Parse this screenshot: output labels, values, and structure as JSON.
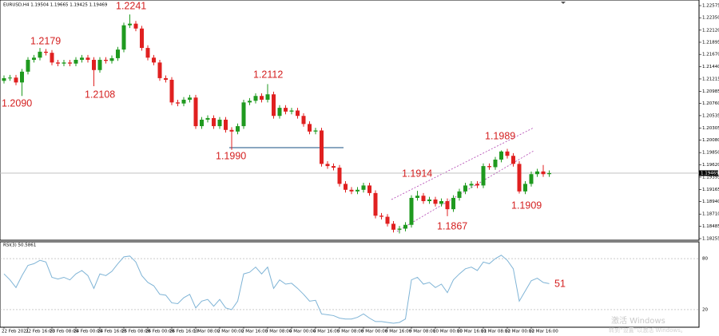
{
  "chart_data": {
    "type": "candlestick",
    "header": "EURUSD,H4  1.19504 1.19665 1.19425 1.19469",
    "open": [
      1.2118,
      1.2123,
      1.2124,
      1.2115,
      1.2135,
      1.2157,
      1.2161,
      1.2172,
      1.217,
      1.2152,
      1.215,
      1.2152,
      1.215,
      1.2157,
      1.2161,
      1.2157,
      1.2138,
      1.2157,
      1.2155,
      1.216,
      1.2176,
      1.2221,
      1.2224,
      1.2215,
      1.2179,
      1.2161,
      1.2152,
      1.2123,
      1.212,
      1.2078,
      1.2076,
      1.2083,
      1.2087,
      1.2034,
      1.2046,
      1.2049,
      1.2034,
      1.2046,
      1.2027,
      1.2024,
      1.2034,
      1.2078,
      1.2081,
      1.209,
      1.2083,
      1.2093,
      1.2053,
      1.2068,
      1.2061,
      1.2063,
      1.2053,
      1.2038,
      1.2024,
      1.2026,
      1.1964,
      1.196,
      1.1957,
      1.1927,
      1.1916,
      1.1913,
      1.1916,
      1.1924,
      1.191,
      1.1868,
      1.1866,
      1.1853,
      1.1842,
      1.1844,
      1.1851,
      1.1901,
      1.1905,
      1.1895,
      1.1898,
      1.189,
      1.1895,
      1.188,
      1.1901,
      1.1913,
      1.1924,
      1.1927,
      1.1924,
      1.196,
      1.1958,
      1.1972,
      1.1987,
      1.1979,
      1.1964,
      1.1913,
      1.1927,
      1.1945,
      1.195,
      1.1945
    ],
    "high": [
      1.2128,
      1.2129,
      1.2129,
      1.214,
      1.2162,
      1.2166,
      1.2179,
      1.2177,
      1.2175,
      1.2157,
      1.2157,
      1.2157,
      1.2162,
      1.2166,
      1.2166,
      1.2162,
      1.2162,
      1.2162,
      1.2165,
      1.2181,
      1.2226,
      1.2241,
      1.2229,
      1.222,
      1.2184,
      1.2166,
      1.2157,
      1.2128,
      1.2125,
      1.2083,
      1.2088,
      1.2092,
      1.2092,
      1.2051,
      1.2054,
      1.2054,
      1.2051,
      1.2051,
      1.2032,
      1.2039,
      1.2083,
      1.2086,
      1.2095,
      1.2095,
      1.2112,
      1.2098,
      1.2073,
      1.2073,
      1.2068,
      1.2068,
      1.2058,
      1.2043,
      1.2031,
      1.2031,
      1.1969,
      1.1965,
      1.1962,
      1.1932,
      1.1921,
      1.1921,
      1.1929,
      1.1929,
      1.1915,
      1.1873,
      1.1871,
      1.1858,
      1.1849,
      1.1856,
      1.1906,
      1.1914,
      1.191,
      1.1903,
      1.1903,
      1.19,
      1.19,
      1.1906,
      1.1918,
      1.1929,
      1.1932,
      1.1932,
      1.1965,
      1.1965,
      1.1977,
      1.1989,
      1.1992,
      1.1984,
      1.1969,
      1.1932,
      1.195,
      1.1955,
      1.1962,
      1.1952
    ],
    "low": [
      1.2113,
      1.2118,
      1.211,
      1.209,
      1.213,
      1.2152,
      1.2156,
      1.2165,
      1.2147,
      1.2145,
      1.2145,
      1.2145,
      1.2145,
      1.2152,
      1.2152,
      1.2108,
      1.2133,
      1.215,
      1.215,
      1.2155,
      1.2171,
      1.2216,
      1.221,
      1.2174,
      1.2156,
      1.2147,
      1.2118,
      1.2115,
      1.2073,
      1.2071,
      1.2071,
      1.2078,
      1.2029,
      1.2029,
      1.2041,
      1.2029,
      1.2029,
      1.2022,
      1.199,
      1.2019,
      1.2029,
      1.2073,
      1.2076,
      1.2078,
      1.2078,
      1.2048,
      1.2048,
      1.2056,
      1.2056,
      1.2048,
      1.2033,
      1.2019,
      1.2019,
      1.1959,
      1.1955,
      1.1952,
      1.1922,
      1.1911,
      1.1908,
      1.1908,
      1.1911,
      1.1905,
      1.1863,
      1.1861,
      1.1848,
      1.1837,
      1.1835,
      1.1839,
      1.1846,
      1.1896,
      1.189,
      1.189,
      1.1885,
      1.1885,
      1.1867,
      1.1875,
      1.1896,
      1.1908,
      1.1919,
      1.1919,
      1.1919,
      1.1953,
      1.1953,
      1.1967,
      1.1974,
      1.1959,
      1.1909,
      1.1908,
      1.1922,
      1.194,
      1.194,
      1.194
    ],
    "close": [
      1.2123,
      1.2124,
      1.2115,
      1.2135,
      1.2157,
      1.2161,
      1.2172,
      1.217,
      1.2152,
      1.215,
      1.2152,
      1.215,
      1.2157,
      1.2161,
      1.2157,
      1.2138,
      1.2157,
      1.2155,
      1.216,
      1.2176,
      1.2221,
      1.2224,
      1.2215,
      1.2179,
      1.2161,
      1.2152,
      1.2123,
      1.212,
      1.2078,
      1.2076,
      1.2083,
      1.2087,
      1.2034,
      1.2046,
      1.2049,
      1.2034,
      1.2046,
      1.2027,
      1.2024,
      1.2034,
      1.2078,
      1.2081,
      1.209,
      1.2083,
      1.2093,
      1.2053,
      1.2068,
      1.2061,
      1.2063,
      1.2053,
      1.2038,
      1.2024,
      1.2026,
      1.1964,
      1.196,
      1.1957,
      1.1927,
      1.1916,
      1.1913,
      1.1916,
      1.1924,
      1.191,
      1.1868,
      1.1866,
      1.1853,
      1.1842,
      1.1844,
      1.1851,
      1.1901,
      1.1905,
      1.1895,
      1.1898,
      1.189,
      1.1895,
      1.188,
      1.1901,
      1.1913,
      1.1924,
      1.1927,
      1.1924,
      1.196,
      1.1958,
      1.1972,
      1.1987,
      1.1979,
      1.1964,
      1.1913,
      1.1927,
      1.1945,
      1.195,
      1.1945,
      1.1947
    ],
    "up_color": "#1f9a1f",
    "down_color": "#e02020",
    "ylim": [
      1.18225,
      1.22679
    ],
    "yticks": [
      {
        "value": 1.22575,
        "label": "1.22575"
      },
      {
        "value": 1.2235,
        "label": "1.22350"
      },
      {
        "value": 1.2212,
        "label": "1.22120"
      },
      {
        "value": 1.21895,
        "label": "1.21895"
      },
      {
        "value": 1.2167,
        "label": "1.21670"
      },
      {
        "value": 1.2144,
        "label": "1.21440"
      },
      {
        "value": 1.21215,
        "label": "1.21215"
      },
      {
        "value": 1.20985,
        "label": "1.20985"
      },
      {
        "value": 1.2076,
        "label": "1.20760"
      },
      {
        "value": 1.20535,
        "label": "1.20535"
      },
      {
        "value": 1.20305,
        "label": "1.20305"
      },
      {
        "value": 1.2008,
        "label": "1.20080"
      },
      {
        "value": 1.1985,
        "label": "1.19850"
      },
      {
        "value": 1.1962,
        "label": "1.19620"
      },
      {
        "value": 1.19395,
        "label": "1.19395"
      },
      {
        "value": 1.19165,
        "label": "1.19165"
      },
      {
        "value": 1.1894,
        "label": "1.18940"
      },
      {
        "value": 1.1871,
        "label": "1.18710"
      },
      {
        "value": 1.18485,
        "label": "1.18485"
      },
      {
        "value": 1.18255,
        "label": "1.18255"
      }
    ],
    "last_price": {
      "value": 1.19469,
      "label": "1.19469"
    },
    "xtick_labels": [
      "22 Feb 2021",
      "22 Feb 16:00",
      "23 Feb 08:00",
      "24 Feb 00:00",
      "24 Feb 16:00",
      "25 Feb 08:00",
      "26 Feb 00:00",
      "26 Feb 16:00",
      "1 Mar 08:00",
      "2 Mar 00:00",
      "2 Mar 16:00",
      "3 Mar 08:00",
      "4 Mar 00:00",
      "4 Mar 16:00",
      "5 Mar 08:00",
      "8 Mar 00:00",
      "8 Mar 16:00",
      "9 Mar 08:00",
      "10 Mar 00:00",
      "10 Mar 16:00",
      "11 Mar 08:00",
      "12 Mar 00:00",
      "12 Mar 16:00"
    ],
    "annotations": [
      "1.2241",
      "1.2179",
      "1.2090",
      "1.2108",
      "1.2112",
      "1.1990",
      "1.1914",
      "1.1989",
      "1.1867",
      "1.1909",
      "51"
    ],
    "rsi": {
      "title": "RSI(3) 50.5861",
      "color": "#7fb4d6",
      "ylim": [
        0,
        100
      ],
      "yticks": [
        80,
        20
      ],
      "values": [
        62,
        55,
        46,
        60,
        72,
        74,
        78,
        76,
        58,
        56,
        58,
        55,
        62,
        66,
        60,
        45,
        62,
        60,
        65,
        74,
        82,
        83,
        76,
        60,
        52,
        48,
        38,
        37,
        28,
        27,
        34,
        38,
        22,
        30,
        32,
        24,
        32,
        22,
        20,
        30,
        62,
        64,
        70,
        62,
        70,
        45,
        55,
        50,
        51,
        45,
        38,
        30,
        31,
        15,
        14,
        13,
        10,
        9,
        9,
        11,
        15,
        10,
        6,
        6,
        5,
        4,
        5,
        9,
        55,
        58,
        50,
        52,
        46,
        50,
        40,
        55,
        62,
        68,
        70,
        66,
        76,
        74,
        80,
        84,
        78,
        68,
        30,
        42,
        54,
        57,
        52,
        50.5861
      ]
    },
    "watermark": [
      "激活 Windows",
      "转到“设置”以激活 Windows。"
    ]
  }
}
